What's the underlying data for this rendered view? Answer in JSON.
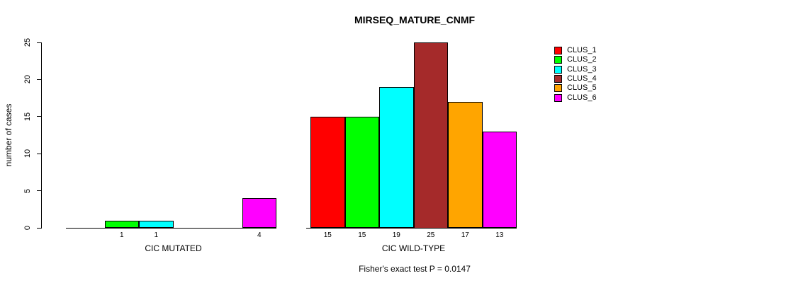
{
  "chart_data": {
    "type": "bar",
    "title": "MIRSEQ_MATURE_CNMF",
    "ylabel": "number of cases",
    "xlabel": "",
    "ylim": [
      0,
      25
    ],
    "yticks": [
      0,
      5,
      10,
      15,
      20,
      25
    ],
    "grid": false,
    "legend_position": "right-outside",
    "series": [
      {
        "name": "CLUS_1",
        "color": "#FF0000"
      },
      {
        "name": "CLUS_2",
        "color": "#00FF00"
      },
      {
        "name": "CLUS_3",
        "color": "#00FFFF"
      },
      {
        "name": "CLUS_4",
        "color": "#A52A2A"
      },
      {
        "name": "CLUS_5",
        "color": "#FFA500"
      },
      {
        "name": "CLUS_6",
        "color": "#FF00FF"
      }
    ],
    "groups": [
      {
        "label": "CIC MUTATED",
        "values": [
          0,
          1,
          1,
          0,
          0,
          4
        ]
      },
      {
        "label": "CIC WILD-TYPE",
        "values": [
          15,
          15,
          19,
          25,
          17,
          13
        ]
      }
    ],
    "annotation": "Fisher's exact test P = 0.0147"
  }
}
